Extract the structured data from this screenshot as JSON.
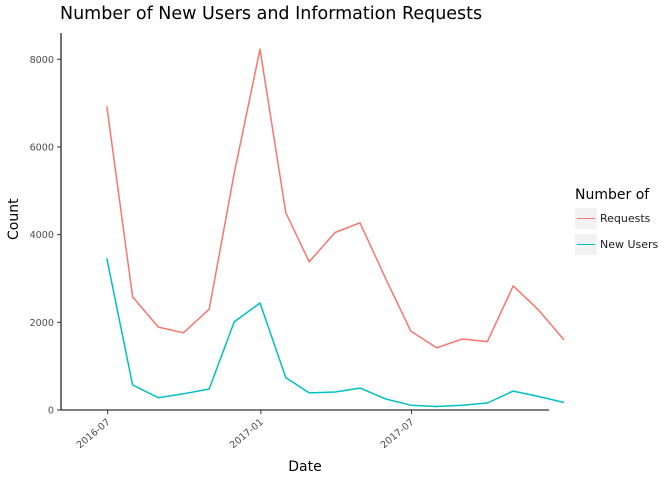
{
  "chart_data": {
    "type": "line",
    "title": "Number of New Users and Information Requests",
    "xlabel": "Date",
    "ylabel": "Count",
    "ylim": [
      0,
      8600
    ],
    "xlim": [
      "2016-05-06",
      "2017-12-13"
    ],
    "y_ticks": [
      0,
      2000,
      4000,
      6000,
      8000
    ],
    "x_ticks": [
      "2016-07",
      "2017-01",
      "2017-07"
    ],
    "grid": false,
    "legend": {
      "title": "Number of",
      "position": "right"
    },
    "x": [
      "2016-06",
      "2016-07",
      "2016-08",
      "2016-09",
      "2016-10",
      "2016-11",
      "2016-12",
      "2017-01",
      "2017-02",
      "2017-03",
      "2017-04",
      "2017-05",
      "2017-06",
      "2017-07",
      "2017-08",
      "2017-09",
      "2017-10",
      "2017-11",
      "2017-12"
    ],
    "series": [
      {
        "name": "Requests",
        "color": "#f8766d",
        "values": [
          6930,
          2580,
          1890,
          1760,
          2300,
          5400,
          8230,
          4500,
          3380,
          4050,
          4270,
          2990,
          1800,
          1420,
          1620,
          1560,
          2830,
          2290,
          1600
        ]
      },
      {
        "name": "New Users",
        "color": "#00bfc4",
        "values": [
          3460,
          570,
          280,
          370,
          480,
          2010,
          2440,
          740,
          390,
          410,
          500,
          250,
          110,
          80,
          110,
          160,
          430,
          310,
          170
        ]
      }
    ]
  }
}
